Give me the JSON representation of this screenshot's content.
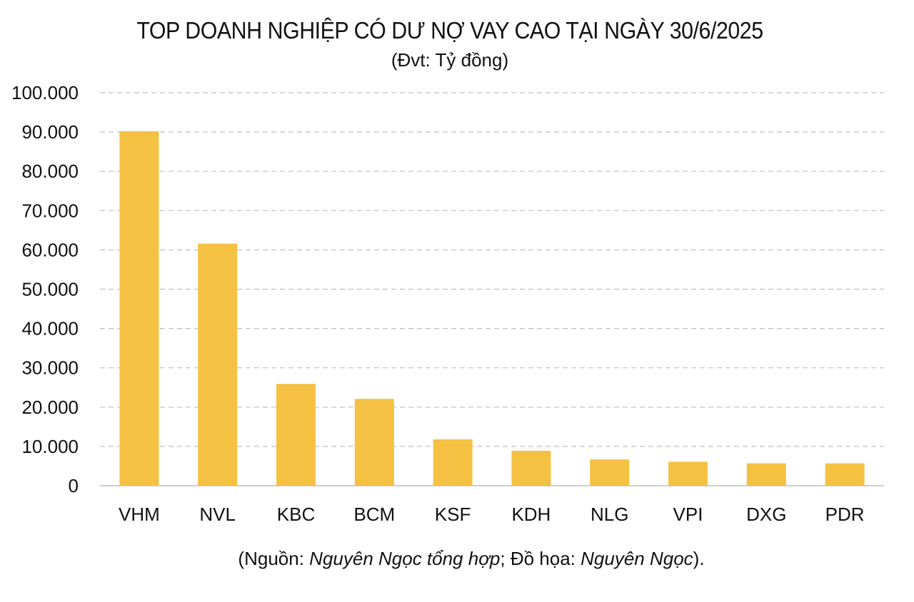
{
  "chart_data": {
    "type": "bar",
    "title": "TOP DOANH NGHIỆP CÓ DƯ NỢ VAY CAO TẠI NGÀY 30/6/2025",
    "subtitle": "(Đvt: Tỷ đồng)",
    "categories": [
      "VHM",
      "NVL",
      "KBC",
      "BCM",
      "KSF",
      "KDH",
      "NLG",
      "VPI",
      "DXG",
      "PDR"
    ],
    "values": [
      90200,
      61600,
      25900,
      22100,
      11800,
      8900,
      6700,
      6100,
      5700,
      5700
    ],
    "ylim": [
      0,
      100000
    ],
    "yticks": [
      "0",
      "10.000",
      "20.000",
      "30.000",
      "40.000",
      "50.000",
      "60.000",
      "70.000",
      "80.000",
      "90.000",
      "100.000"
    ],
    "grid": true,
    "bar_color": "#F4C142",
    "grid_color": "#BFBFBF"
  },
  "footnote": {
    "open": "(Nguồn: ",
    "source": "Nguyên Ngọc tổng hợp",
    "mid": "; Đồ họa: ",
    "designer": "Nguyên Ngọc",
    "close": ")."
  }
}
